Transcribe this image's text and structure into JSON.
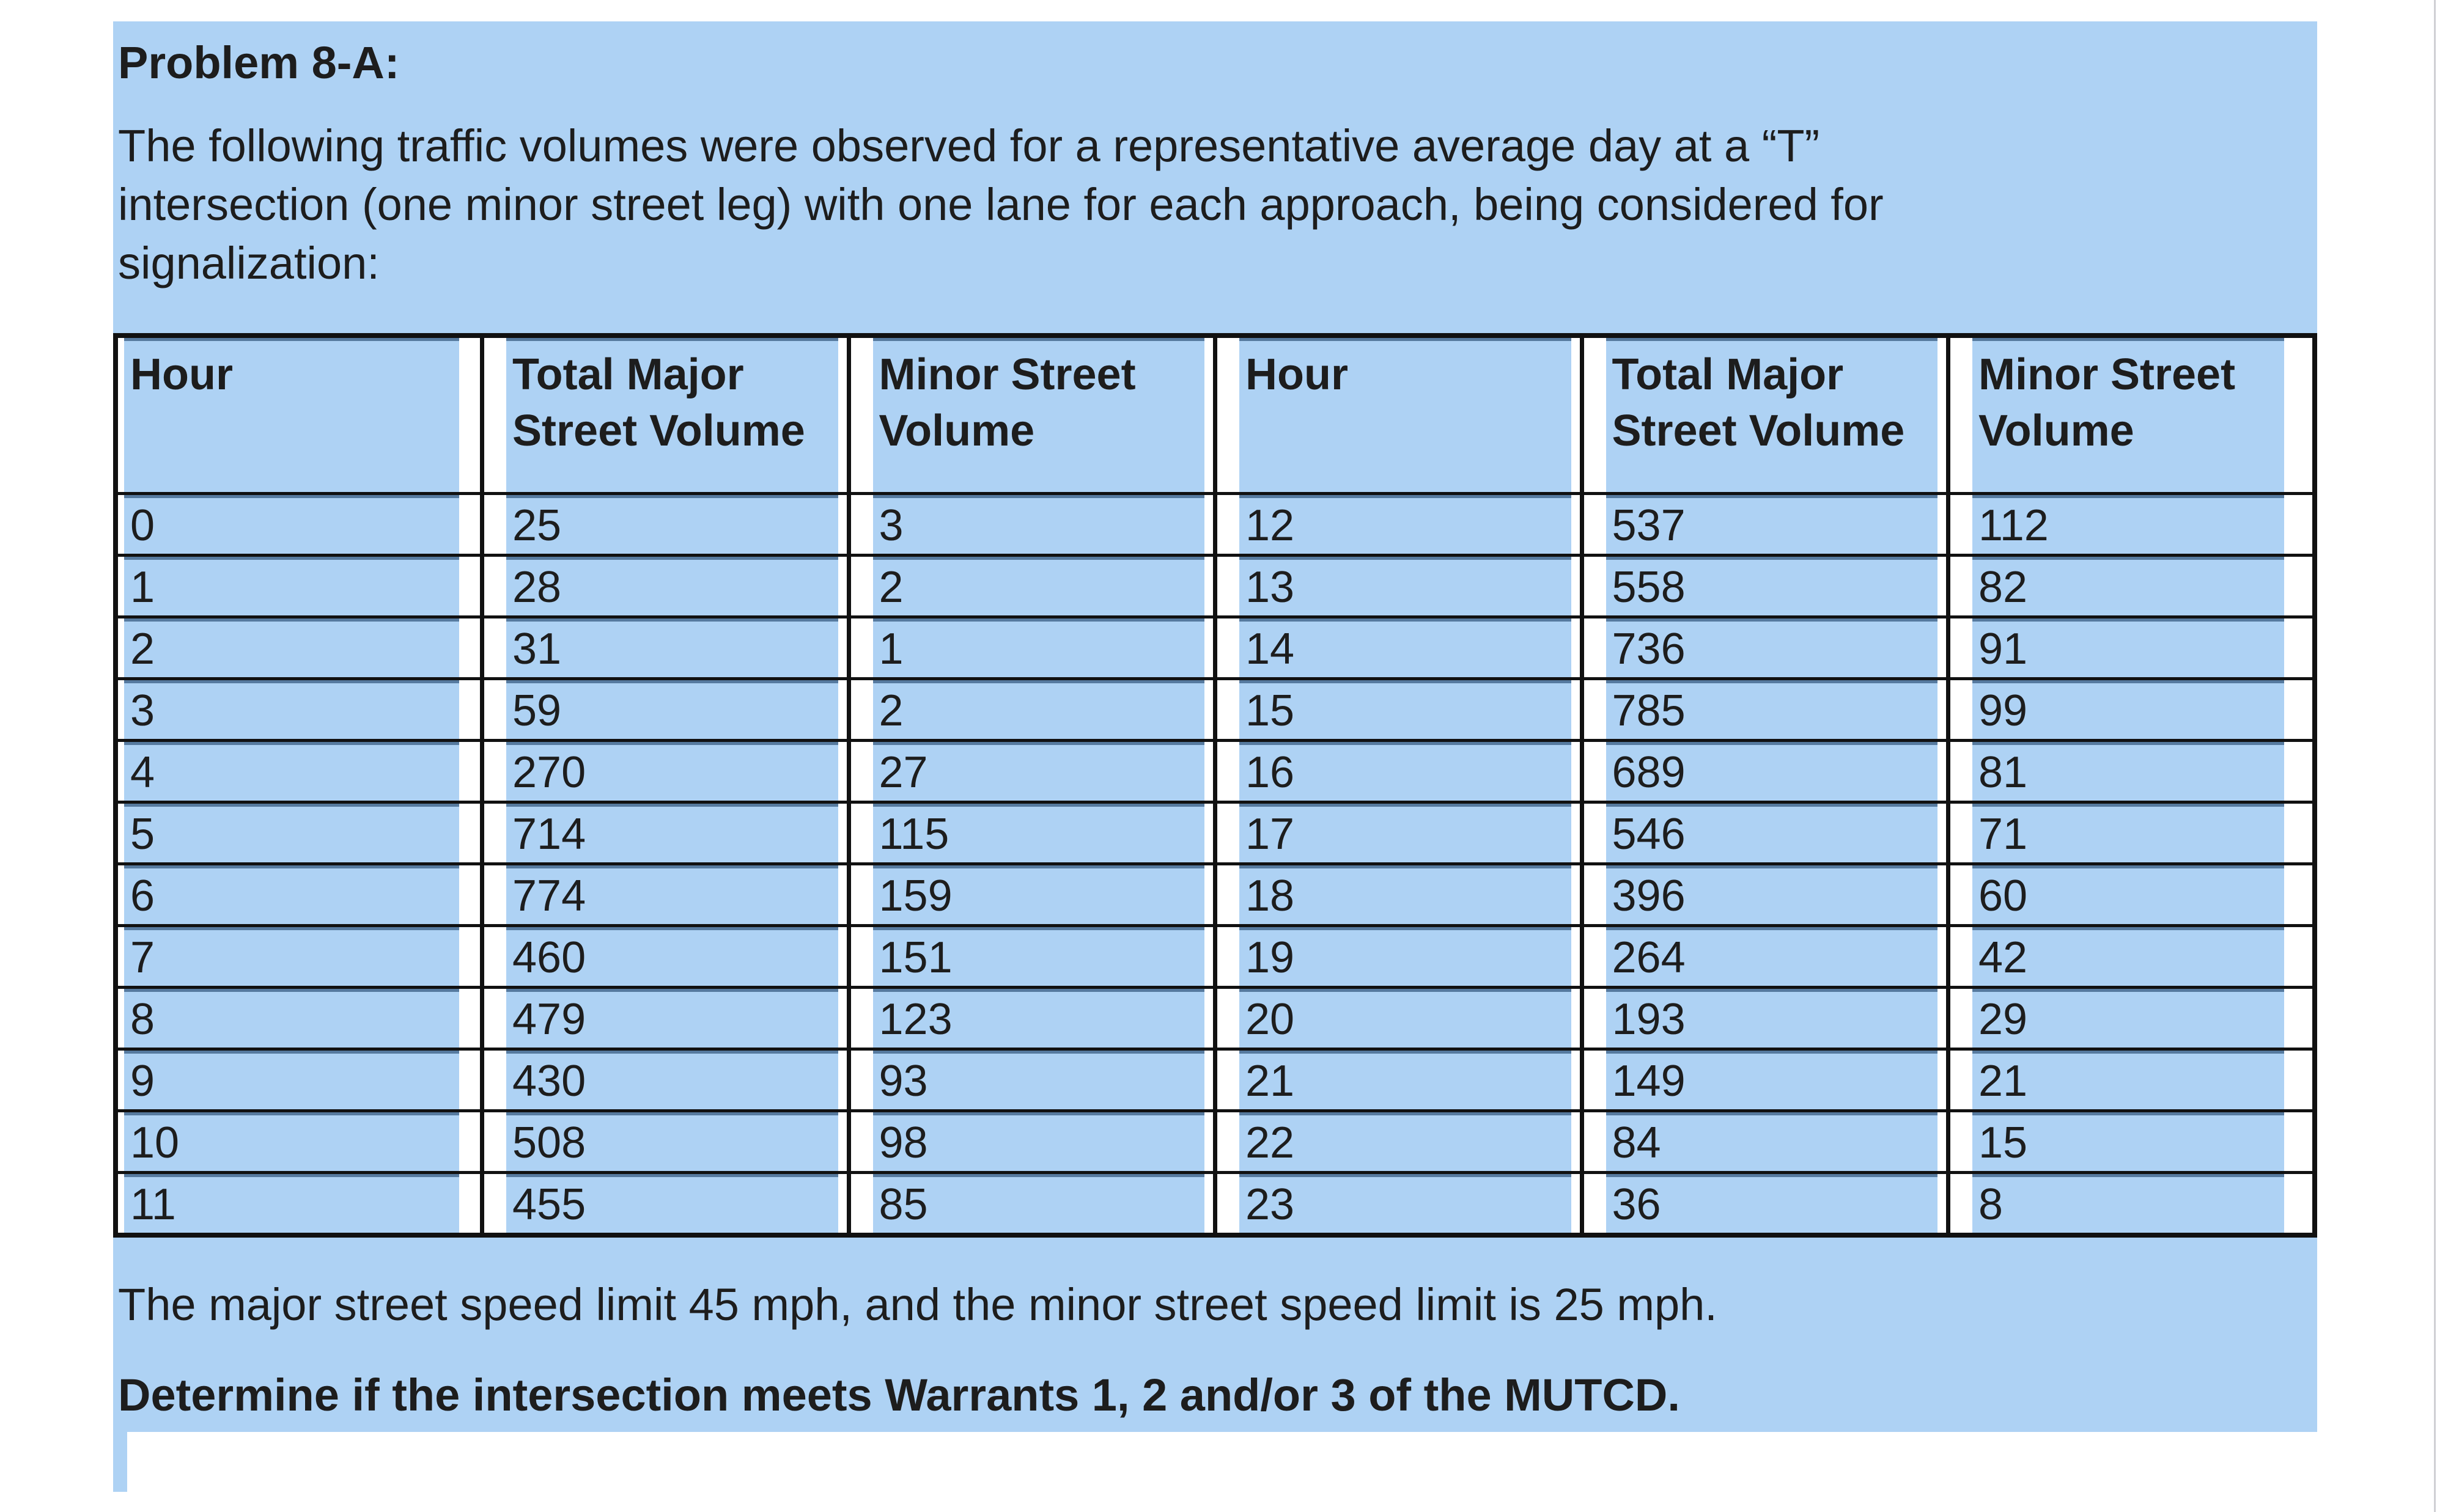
{
  "title": "Problem 8-A:",
  "intro_lines": [
    "The following traffic volumes were observed for a representative average day at a “T”",
    "intersection (one minor street leg) with one lane for each approach, being considered for",
    "signalization:"
  ],
  "table": {
    "headers": [
      "Hour",
      "Total Major Street Volume",
      "Minor Street Volume",
      "Hour",
      "Total Major Street Volume",
      "Minor Street Volume"
    ],
    "rows": [
      [
        0,
        25,
        3,
        12,
        537,
        112
      ],
      [
        1,
        28,
        2,
        13,
        558,
        82
      ],
      [
        2,
        31,
        1,
        14,
        736,
        91
      ],
      [
        3,
        59,
        2,
        15,
        785,
        99
      ],
      [
        4,
        270,
        27,
        16,
        689,
        81
      ],
      [
        5,
        714,
        115,
        17,
        546,
        71
      ],
      [
        6,
        774,
        159,
        18,
        396,
        60
      ],
      [
        7,
        460,
        151,
        19,
        264,
        42
      ],
      [
        8,
        479,
        123,
        20,
        193,
        29
      ],
      [
        9,
        430,
        93,
        21,
        149,
        21
      ],
      [
        10,
        508,
        98,
        22,
        84,
        15
      ],
      [
        11,
        455,
        85,
        23,
        36,
        8
      ]
    ]
  },
  "note": "The major street speed limit 45 mph, and the minor street speed limit is 25 mph.",
  "question": "Determine if the intersection meets Warrants 1, 2 and/or 3 of the MUTCD.",
  "colors": {
    "highlight": "#aed2f4",
    "highlight_edge": "#567a9f",
    "border": "#111111",
    "text": "#1d1d1d",
    "page_bg": "#ffffff",
    "window_edge": "#d0d0d4"
  }
}
